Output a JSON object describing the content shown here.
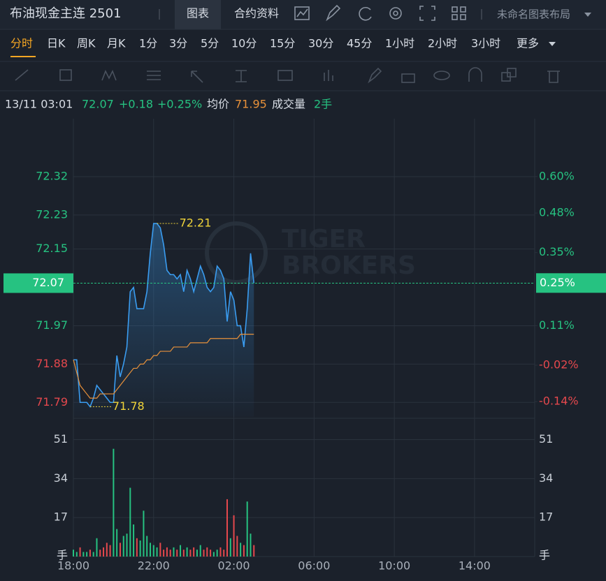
{
  "header": {
    "title": "布油现金主连 2501",
    "tabs": [
      "图表",
      "合约资料"
    ],
    "layout": "未命名图表布局"
  },
  "periods": [
    "分时",
    "日K",
    "周K",
    "月K",
    "1分",
    "3分",
    "5分",
    "10分",
    "15分",
    "30分",
    "45分",
    "1小时",
    "2小时",
    "3小时"
  ],
  "more": "更多",
  "quote": {
    "time": "13/11 03:01",
    "price": "72.07",
    "change": "+0.18",
    "change_pct": "+0.25%",
    "avg": "71.95",
    "volume": "2手"
  },
  "watermark": [
    "TIGER",
    "BROKERS"
  ],
  "chart_data": {
    "type": "line",
    "x": [
      "18:00",
      "18:10",
      "18:20",
      "18:30",
      "18:40",
      "18:50",
      "19:00",
      "19:10",
      "19:20",
      "19:30",
      "19:40",
      "19:50",
      "20:00",
      "20:10",
      "20:20",
      "20:30",
      "20:40",
      "20:50",
      "21:00",
      "21:10",
      "21:20",
      "21:30",
      "21:40",
      "21:50",
      "22:00",
      "22:10",
      "22:20",
      "22:30",
      "22:40",
      "22:50",
      "23:00",
      "23:10",
      "23:20",
      "23:30",
      "23:40",
      "23:50",
      "00:00",
      "00:10",
      "00:20",
      "00:30",
      "00:40",
      "00:50",
      "01:00",
      "01:10",
      "01:20",
      "01:30",
      "01:40",
      "01:50",
      "02:00",
      "02:10",
      "02:20",
      "02:30",
      "02:40",
      "02:50",
      "03:00"
    ],
    "xlim": [
      "18:00",
      "17:00"
    ],
    "xticks": [
      "18:00",
      "22:00",
      "02:00",
      "06:00",
      "10:00",
      "14:00"
    ],
    "ylim": [
      71.756,
      72.456
    ],
    "yticks": [
      71.79,
      71.88,
      71.97,
      72.15,
      72.23,
      72.32
    ],
    "y2lim": [
      -0.19,
      0.79
    ],
    "y2ticks": [
      {
        "value": -0.14,
        "label": "-0.14%"
      },
      {
        "value": -0.02,
        "label": "-0.02%"
      },
      {
        "value": 0.11,
        "label": "0.11%"
      },
      {
        "value": 0.35,
        "label": "0.35%"
      },
      {
        "value": 0.48,
        "label": "0.48%"
      },
      {
        "value": 0.6,
        "label": "0.60%"
      }
    ],
    "up_color": "#26c281",
    "down_color": "#e5484d",
    "grid": true,
    "series": [
      {
        "color": "#3a9cf0",
        "values": [
          71.89,
          71.89,
          71.79,
          71.79,
          71.79,
          71.78,
          71.8,
          71.83,
          71.82,
          71.81,
          71.8,
          71.79,
          71.79,
          71.9,
          71.85,
          71.88,
          71.92,
          72.05,
          72.06,
          72.01,
          72.01,
          72.01,
          72.05,
          72.14,
          72.21,
          72.21,
          72.2,
          72.16,
          72.1,
          72.09,
          72.09,
          72.08,
          72.09,
          72.05,
          72.1,
          72.08,
          72.05,
          72.08,
          72.11,
          72.09,
          72.06,
          72.05,
          72.06,
          72.11,
          72.1,
          72.08,
          71.98,
          72.05,
          72.03,
          71.97,
          71.97,
          71.92,
          72.01,
          72.14,
          72.07
        ]
      },
      {
        "name": "均价",
        "color": "#e8913a",
        "values": [
          71.89,
          71.86,
          71.83,
          71.82,
          71.81,
          71.8,
          71.8,
          71.8,
          71.81,
          71.81,
          71.81,
          71.81,
          71.81,
          71.82,
          71.83,
          71.84,
          71.85,
          71.86,
          71.87,
          71.87,
          71.88,
          71.88,
          71.89,
          71.89,
          71.9,
          71.9,
          71.91,
          71.91,
          71.91,
          71.91,
          71.92,
          71.92,
          71.92,
          71.92,
          71.92,
          71.93,
          71.93,
          71.93,
          71.93,
          71.93,
          71.93,
          71.94,
          71.94,
          71.94,
          71.94,
          71.94,
          71.94,
          71.94,
          71.94,
          71.94,
          71.95,
          71.95,
          71.95,
          71.95,
          71.95
        ]
      }
    ],
    "current": {
      "value": 72.07,
      "pct": {
        "value": 0.25,
        "label": "0.25%"
      }
    },
    "annotations": [
      {
        "x": "22:10",
        "value": 72.21
      },
      {
        "x": "18:50",
        "value": 71.78
      }
    ],
    "volume": {
      "name": "成交量",
      "unit": "手",
      "ylim": [
        0,
        60
      ],
      "yticks": [
        17,
        34,
        51
      ],
      "values": [
        3,
        2,
        4,
        2,
        2,
        3,
        2,
        8,
        3,
        4,
        6,
        5,
        47,
        12,
        6,
        9,
        10,
        30,
        14,
        8,
        7,
        20,
        9,
        6,
        5,
        4,
        6,
        3,
        4,
        3,
        4,
        3,
        5,
        3,
        4,
        3,
        4,
        3,
        5,
        3,
        4,
        3,
        2,
        3,
        4,
        3,
        25,
        8,
        18,
        9,
        6,
        5,
        24,
        10,
        5
      ]
    }
  }
}
